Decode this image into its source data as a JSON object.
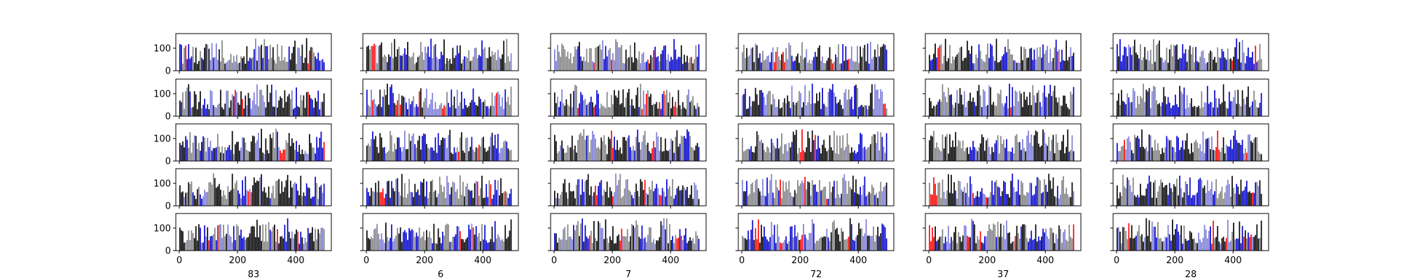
{
  "chart_data": {
    "type": "bar",
    "layout": "grid of small multiples, 5 rows x 6 columns, shared axes",
    "columns": [
      {
        "xlabel": "83"
      },
      {
        "xlabel": "6"
      },
      {
        "xlabel": "7"
      },
      {
        "xlabel": "72"
      },
      {
        "xlabel": "37"
      },
      {
        "xlabel": "28"
      }
    ],
    "rows": 5,
    "xlim": [
      -12,
      522
    ],
    "ylim": [
      0,
      165
    ],
    "xticks": [
      0,
      200,
      400
    ],
    "yticks": [
      0,
      100
    ],
    "bars_per_panel": 100,
    "bar_spacing": 5,
    "value_range": [
      30,
      145
    ],
    "bar_colors": [
      "#000000",
      "#808080",
      "#0000cc",
      "#7b7bd8",
      "#ff0000"
    ],
    "grid": false,
    "legend": "none"
  }
}
